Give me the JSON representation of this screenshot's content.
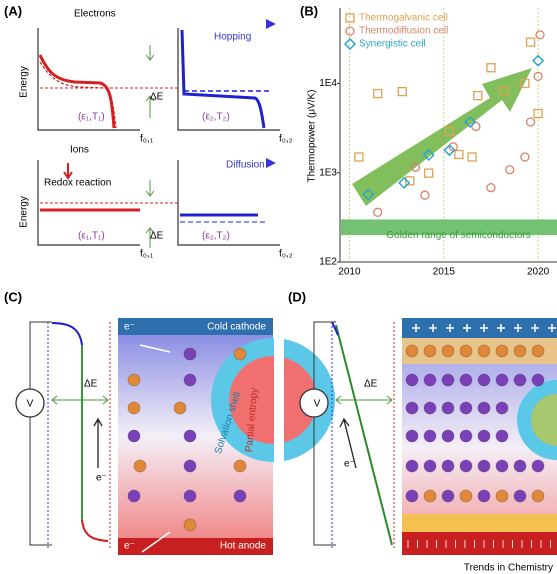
{
  "chart_data": {
    "type": "scatter",
    "panel": "(B)",
    "ylabel": "Thermopower (μV/K)",
    "xlim": [
      2009.5,
      2021
    ],
    "xticks": [
      2010,
      2015,
      2020
    ],
    "xgrid": true,
    "ylim": [
      100,
      70000
    ],
    "yscale": "log",
    "yticks": [
      {
        "value": 100,
        "label": "1E2"
      },
      {
        "value": 1000,
        "label": "1E3"
      },
      {
        "value": 10000,
        "label": "1E4"
      }
    ],
    "legend": "upper left",
    "band": {
      "label": "Golden range of semiconductors",
      "range": [
        200,
        300
      ],
      "color": "#5cb85c"
    },
    "series": [
      {
        "name": "Thermogalvanic cell",
        "color": "#e0a050",
        "marker": "square",
        "x": [
          2010.5,
          2011.5,
          2012.8,
          2013.2,
          2014.2,
          2015.3,
          2015.8,
          2016.5,
          2016.8,
          2017.5,
          2018.2,
          2019.3,
          2019.6,
          2020
        ],
        "values": [
          1500,
          7700,
          8100,
          810,
          990,
          2900,
          1600,
          1500,
          7300,
          15000,
          8300,
          10000,
          29000,
          4600
        ]
      },
      {
        "name": "Thermodiffusion cell",
        "color": "#d9826a",
        "marker": "circle",
        "x": [
          2011.5,
          2013.5,
          2014,
          2015.5,
          2016.7,
          2017.5,
          2018.5,
          2019.3,
          2019.6,
          2020.1,
          2020
        ],
        "values": [
          360,
          1150,
          560,
          1950,
          3300,
          680,
          1080,
          1500,
          3700,
          35000,
          12000
        ]
      },
      {
        "name": "Synergistic cell",
        "color": "#2aa7c9",
        "marker": "diamond",
        "x": [
          2011,
          2012.9,
          2014.2,
          2015.3,
          2016.4,
          2020
        ],
        "values": [
          570,
          770,
          1580,
          1790,
          3700,
          18000
        ]
      }
    ]
  },
  "figure": {
    "A": {
      "label": "(A)",
      "electrons": "Electrons",
      "hopping": "Hopping",
      "ions": "Ions",
      "diffusion": "Diffusion",
      "redox": "Redox reaction",
      "energy_top": "Energy",
      "energy_bottom": "Energy",
      "de_top": "ΔE",
      "de_bottom": "ΔE",
      "state1_top": "(ε₁,T₁)",
      "state2_top": "(ε₂,T₂)",
      "state1_bottom": "(ε₁,T₁)",
      "state2_bottom": "(ε₂,T₂)",
      "f1_top": "f₀,₁",
      "f2_top": "f₀,₂",
      "f1_bottom": "f₀,₁",
      "f2_bottom": "f₀,₂"
    },
    "C": {
      "label": "(C)",
      "cathode": "Cold cathode",
      "anode": "Hot anode",
      "e_top": "e⁻",
      "e_bottom": "e⁻",
      "e_circuit": "e⁻",
      "de": "ΔE",
      "v": "V",
      "shell": "Solvation shell",
      "entropy": "Partial entropy"
    },
    "D": {
      "label": "(D)",
      "de": "ΔE",
      "v": "V",
      "e_circuit": "e⁻"
    },
    "footer": "Trends in Chemistry"
  }
}
